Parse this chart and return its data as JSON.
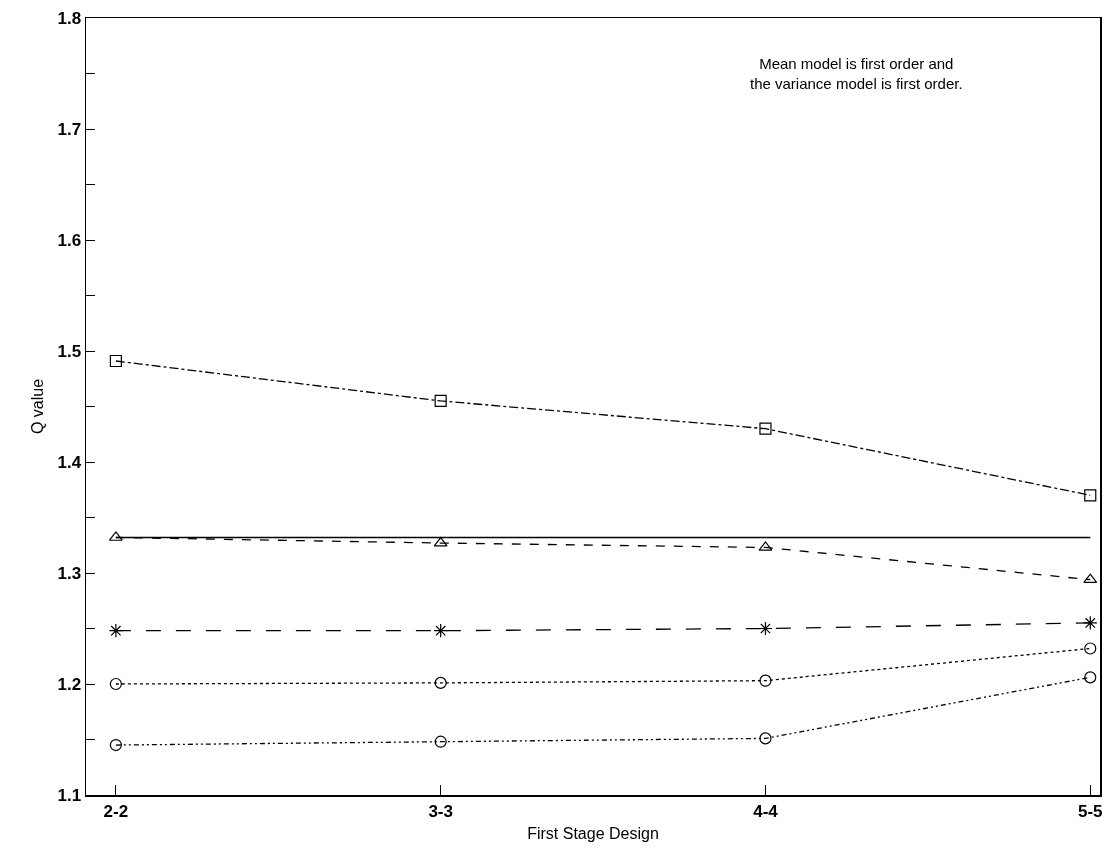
{
  "chart_data": {
    "type": "line",
    "xlabel": "First Stage Design",
    "ylabel": "Q value",
    "categories": [
      "2-2",
      "3-3",
      "4-4",
      "5-5"
    ],
    "series": [
      {
        "color": "#000000",
        "marker": "square",
        "line_style": "dashdot",
        "values": [
          1.491,
          1.455,
          1.43,
          1.37
        ]
      },
      {
        "color": "#000000",
        "marker": "none",
        "line_style": "solid",
        "values": [
          1.332,
          1.332,
          1.332,
          1.332
        ]
      },
      {
        "color": "#000000",
        "marker": "triangle",
        "line_style": "dashed",
        "values": [
          1.332,
          1.327,
          1.323,
          1.294
        ]
      },
      {
        "color": "#000000",
        "marker": "cross",
        "line_style": "longdash",
        "values": [
          1.248,
          1.248,
          1.25,
          1.255
        ]
      },
      {
        "color": "#000000",
        "marker": "circle",
        "line_style": "dotted",
        "values": [
          1.2,
          1.201,
          1.203,
          1.232
        ]
      },
      {
        "color": "#000000",
        "marker": "circle",
        "line_style": "dashdotdot",
        "values": [
          1.145,
          1.148,
          1.151,
          1.206
        ]
      }
    ],
    "ylim": [
      1.1,
      1.8
    ],
    "yticks": [
      1.1,
      {
        "value": 1.15,
        "label": null
      },
      1.2,
      {
        "value": 1.25,
        "label": null
      },
      1.3,
      {
        "value": 1.35,
        "label": null
      },
      1.4,
      {
        "value": 1.45,
        "label": null
      },
      1.5,
      {
        "value": 1.55,
        "label": null
      },
      1.6,
      {
        "value": 1.65,
        "label": null
      },
      1.7,
      {
        "value": 1.75,
        "label": null
      },
      1.8
    ],
    "annotations": [
      "Mean model is first order and\nthe variance model is first order."
    ],
    "grid": false
  }
}
